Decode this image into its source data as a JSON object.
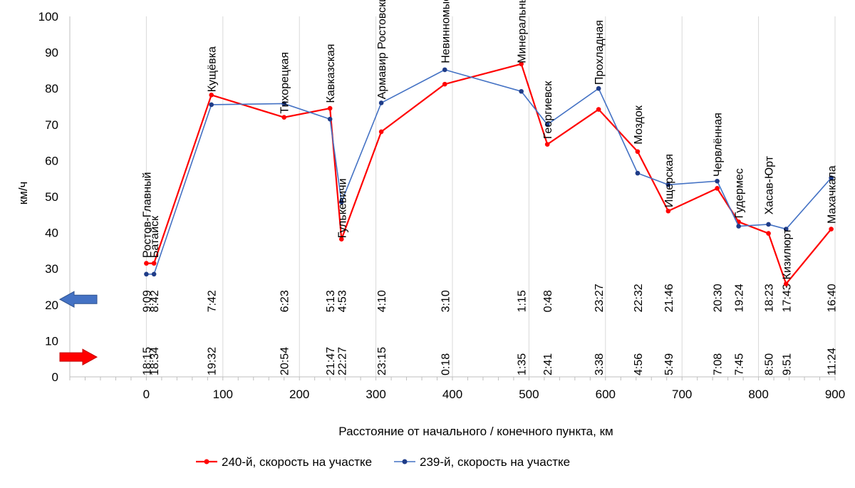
{
  "chart_data": {
    "type": "line",
    "title": "",
    "xlabel": "Расстояние от начального / конечного пункта, км",
    "ylabel": "км/ч",
    "xlim": [
      -100,
      900
    ],
    "ylim": [
      0,
      100
    ],
    "x_ticks": [
      0,
      100,
      200,
      300,
      400,
      500,
      600,
      700,
      800,
      900
    ],
    "y_ticks": [
      0,
      10,
      20,
      30,
      40,
      50,
      60,
      70,
      80,
      90,
      100
    ],
    "grid": "vertical",
    "legend_position": "bottom",
    "series": [
      {
        "name": "240-й, скорость на участке",
        "color": "#ff0000",
        "x": [
          0,
          10,
          85,
          180,
          240,
          255,
          307,
          390,
          490,
          524,
          591,
          642,
          682,
          746,
          774,
          813,
          836,
          895
        ],
        "values": [
          31.5,
          31.5,
          78.2,
          72,
          74.5,
          38.2,
          68,
          81.2,
          86.8,
          64.5,
          74.2,
          62.5,
          46,
          52.3,
          43,
          39.8,
          25.8,
          41
        ]
      },
      {
        "name": "239-й, скорость на участке",
        "color": "#1f3c88",
        "x": [
          0,
          10,
          85,
          180,
          240,
          255,
          307,
          390,
          490,
          524,
          591,
          642,
          682,
          746,
          774,
          813,
          836,
          895
        ],
        "values": [
          28.5,
          28.5,
          75.5,
          75.8,
          71.5,
          48.5,
          76,
          85.2,
          79.2,
          70,
          80,
          56.5,
          53.3,
          54.3,
          41.8,
          42.3,
          41,
          55.2
        ]
      }
    ],
    "stations": [
      {
        "name": "Ростов-Главный",
        "km": 0,
        "time_239": "9:09",
        "time_240": "18:15"
      },
      {
        "name": "Батайск",
        "km": 10,
        "time_239": "8:42",
        "time_240": "18:34"
      },
      {
        "name": "Кущёвка",
        "km": 85,
        "time_239": "7:42",
        "time_240": "19:32"
      },
      {
        "name": "Тихорецкая",
        "km": 180,
        "time_239": "6:23",
        "time_240": "20:54"
      },
      {
        "name": "Кавказская",
        "km": 240,
        "time_239": "5:13",
        "time_240": "21:47"
      },
      {
        "name": "Гулькевичи",
        "km": 255,
        "time_239": "4:53",
        "time_240": "22:27"
      },
      {
        "name": "Армавир Ростовский",
        "km": 307,
        "time_239": "4:10",
        "time_240": "23:15"
      },
      {
        "name": "Невинномысская",
        "km": 390,
        "time_239": "3:10",
        "time_240": "0:18"
      },
      {
        "name": "Минеральные Воды",
        "km": 490,
        "time_239": "1:15",
        "time_240": "1:35"
      },
      {
        "name": "Георгиевск",
        "km": 524,
        "time_239": "0:48",
        "time_240": "2:41"
      },
      {
        "name": "Прохладная",
        "km": 591,
        "time_239": "23:27",
        "time_240": "3:38"
      },
      {
        "name": "Моздок",
        "km": 642,
        "time_239": "22:32",
        "time_240": "4:56"
      },
      {
        "name": "Ищерская",
        "km": 682,
        "time_239": "21:46",
        "time_240": "5:49"
      },
      {
        "name": "Червлённая",
        "km": 746,
        "time_239": "20:30",
        "time_240": "7:08"
      },
      {
        "name": "Гудермес",
        "km": 774,
        "time_239": "19:24",
        "time_240": "7:45"
      },
      {
        "name": "Хасав-Юрт",
        "km": 813,
        "time_239": "18:23",
        "time_240": "8:50"
      },
      {
        "name": "Кизилюрт",
        "km": 836,
        "time_239": "17:43",
        "time_240": "9:51"
      },
      {
        "name": "Махачкала",
        "km": 895,
        "time_239": "16:40",
        "time_240": "11:24"
      }
    ],
    "station_label_y": [
      33,
      33,
      79,
      73,
      76,
      38.5,
      77,
      87,
      87,
      66,
      81,
      64.5,
      47,
      55.5,
      44,
      45,
      27,
      42.5
    ],
    "arrows": [
      {
        "name": "arrow-left-239",
        "direction": "left",
        "color": "#4472c4",
        "y": 21.5
      },
      {
        "name": "arrow-right-240",
        "direction": "right",
        "color": "#ff0000",
        "y": 5.5
      }
    ]
  }
}
